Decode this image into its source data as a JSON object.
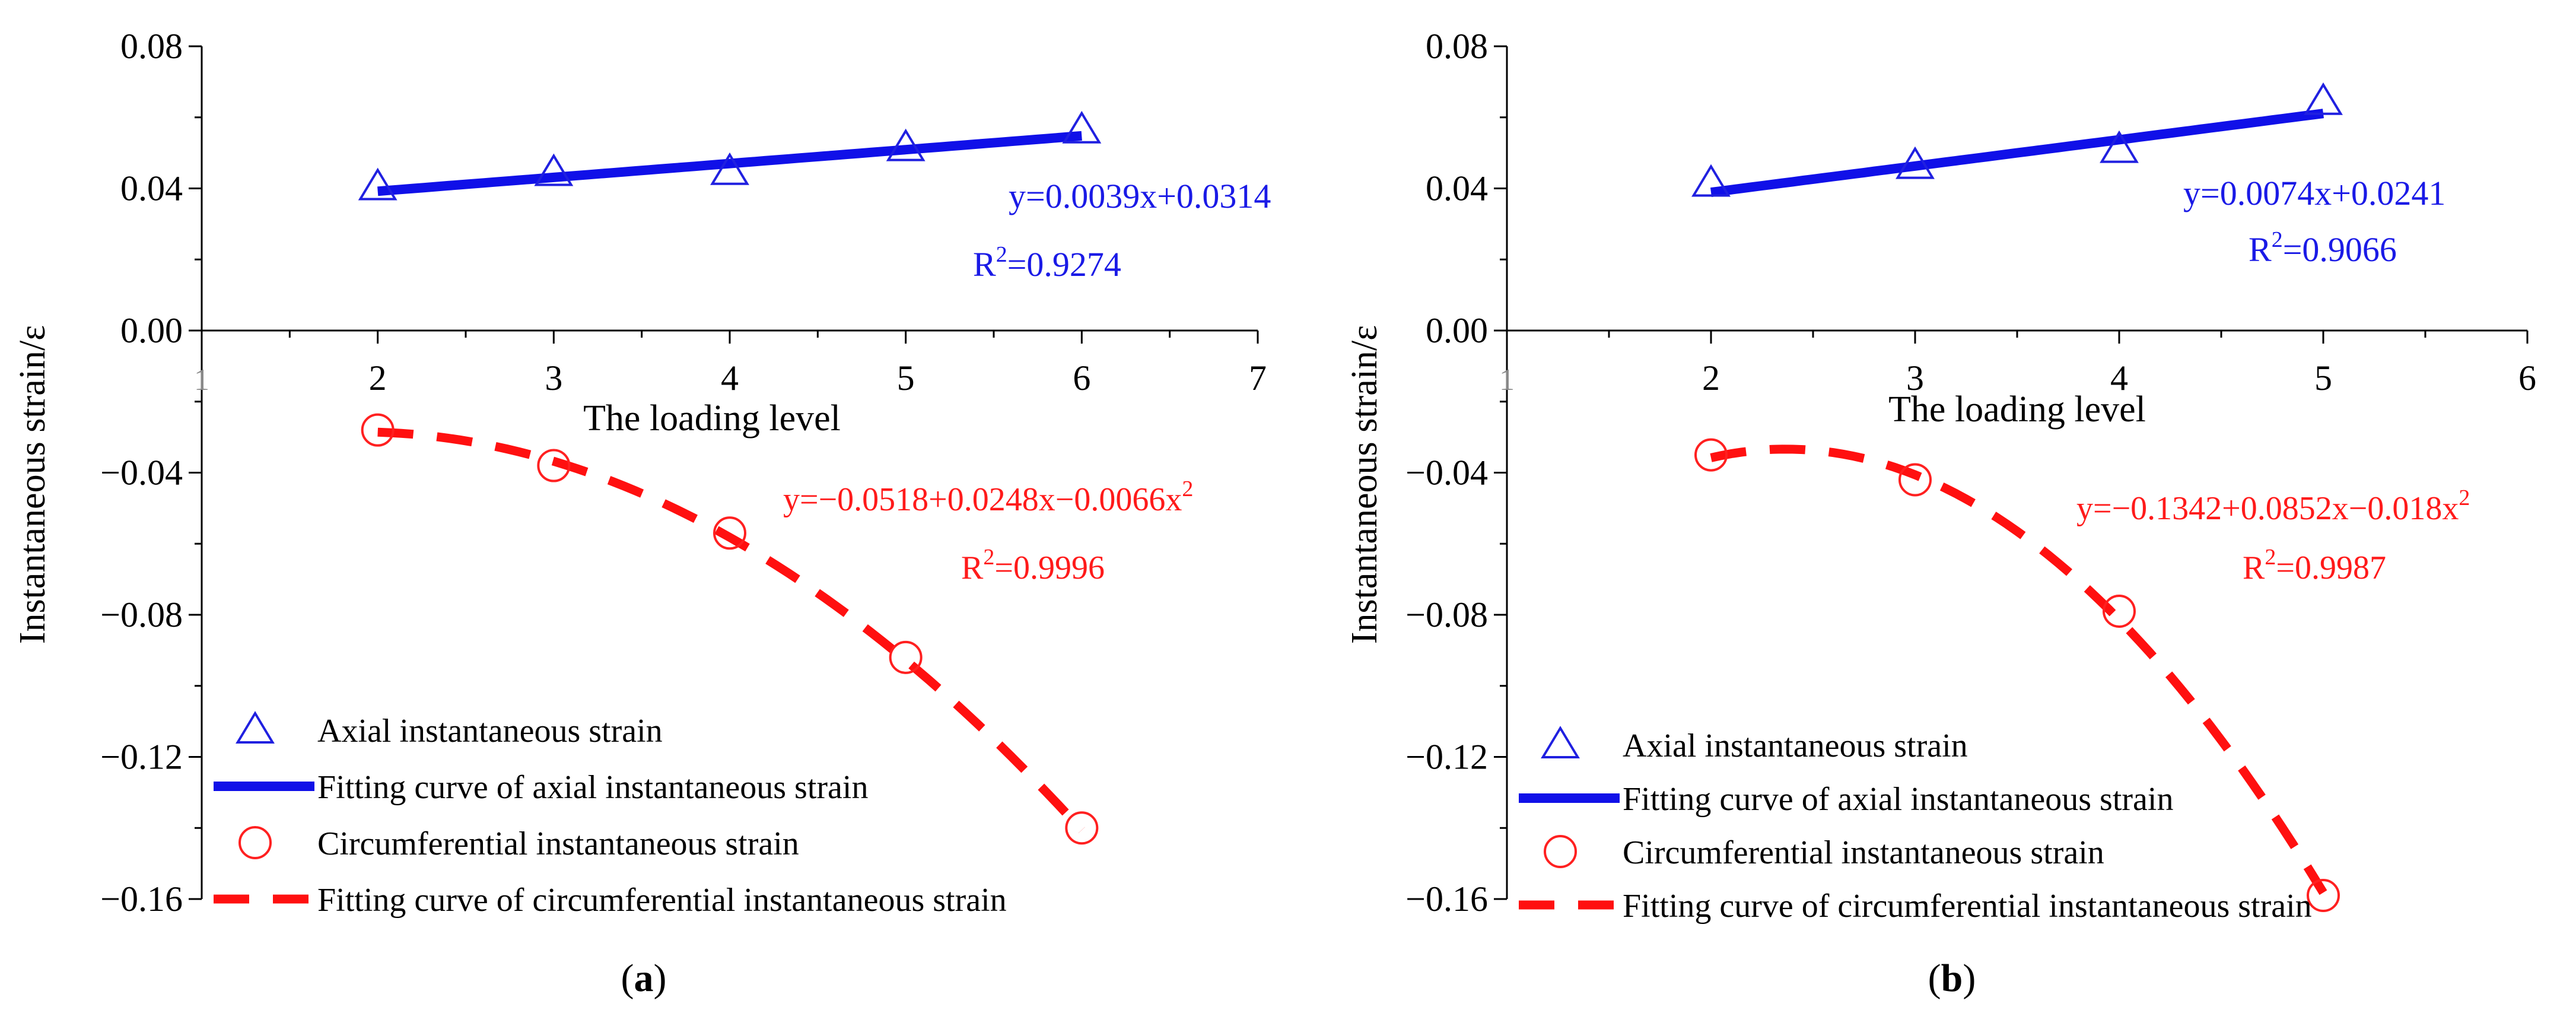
{
  "chart_data": [
    {
      "panel_label": "a",
      "type": "scatter",
      "xlabel": "The loading level",
      "ylabel": "Instantaneous strain/ε",
      "xlim": [
        1,
        7
      ],
      "ylim": [
        -0.16,
        0.08
      ],
      "xticks": [
        2,
        3,
        4,
        5,
        6,
        7
      ],
      "x_origin_label": "1",
      "yticks": [
        0.08,
        0.04,
        0.0,
        -0.04,
        -0.08,
        -0.12,
        -0.16
      ],
      "ytick_labels": [
        "0.08",
        "0.04",
        "0.00",
        "−0.04",
        "−0.08",
        "−0.12",
        "−0.16"
      ],
      "series": [
        {
          "name": "Axial instantaneous strain",
          "kind": "marker-triangle",
          "color": "#2020e0",
          "x": [
            2,
            3,
            4,
            5,
            6
          ],
          "y": [
            0.0405,
            0.0445,
            0.0448,
            0.0515,
            0.0565
          ]
        },
        {
          "name": "Fitting curve of axial instantaneous strain",
          "kind": "line-solid",
          "color": "#1010e8",
          "fit": "linear",
          "coef": [
            0.0314,
            0.0039
          ],
          "xrange": [
            2,
            6
          ]
        },
        {
          "name": "Circumferential instantaneous strain",
          "kind": "marker-circle",
          "color": "#ff2020",
          "x": [
            2,
            3,
            4,
            5,
            6
          ],
          "y": [
            -0.028,
            -0.038,
            -0.057,
            -0.092,
            -0.14
          ]
        },
        {
          "name": "Fitting curve of circumferential instantaneous strain",
          "kind": "line-dashed",
          "color": "#ff1010",
          "fit": "quadratic",
          "coef": [
            -0.0518,
            0.0248,
            -0.0066
          ],
          "xrange": [
            2,
            6
          ]
        }
      ],
      "annotations": {
        "axial_eq": "y=0.0039x+0.0314",
        "axial_r2_prefix": "R",
        "axial_r2_sup": "2",
        "axial_r2_value": "=0.9274",
        "circ_eq_main": "y=−0.0518+0.0248x−0.0066x",
        "circ_eq_sup": "2",
        "circ_r2_prefix": "R",
        "circ_r2_sup": "2",
        "circ_r2_value": "=0.9996"
      },
      "legend_position": "bottom-left"
    },
    {
      "panel_label": "b",
      "type": "scatter",
      "xlabel": "The loading level",
      "ylabel": "Instantaneous strain/ε",
      "xlim": [
        1,
        6
      ],
      "ylim": [
        -0.16,
        0.08
      ],
      "xticks": [
        2,
        3,
        4,
        5,
        6
      ],
      "x_origin_label": "1",
      "yticks": [
        0.08,
        0.04,
        0.0,
        -0.04,
        -0.08,
        -0.12,
        -0.16
      ],
      "ytick_labels": [
        "0.08",
        "0.04",
        "0.00",
        "−0.04",
        "−0.08",
        "−0.12",
        "−0.16"
      ],
      "series": [
        {
          "name": "Axial instantaneous strain",
          "kind": "marker-triangle",
          "color": "#2020e0",
          "x": [
            2,
            3,
            4,
            5
          ],
          "y": [
            0.0415,
            0.0465,
            0.051,
            0.0645
          ]
        },
        {
          "name": "Fitting curve of axial instantaneous strain",
          "kind": "line-solid",
          "color": "#1010e8",
          "fit": "linear",
          "coef": [
            0.0241,
            0.0074
          ],
          "xrange": [
            2,
            5
          ]
        },
        {
          "name": "Circumferential instantaneous strain",
          "kind": "marker-circle",
          "color": "#ff2020",
          "x": [
            2,
            3,
            4,
            5
          ],
          "y": [
            -0.035,
            -0.042,
            -0.079,
            -0.159
          ]
        },
        {
          "name": "Fitting curve of circumferential instantaneous strain",
          "kind": "line-dashed",
          "color": "#ff1010",
          "fit": "quadratic",
          "coef": [
            -0.1342,
            0.0852,
            -0.018
          ],
          "xrange": [
            2,
            5
          ]
        }
      ],
      "annotations": {
        "axial_eq": "y=0.0074x+0.0241",
        "axial_r2_prefix": "R",
        "axial_r2_sup": "2",
        "axial_r2_value": "=0.9066",
        "circ_eq_main": "y=−0.1342+0.0852x−0.018x",
        "circ_eq_sup": "2",
        "circ_r2_prefix": "R",
        "circ_r2_sup": "2",
        "circ_r2_value": "=0.9987"
      },
      "legend_position": "bottom-left"
    }
  ],
  "captions": {
    "a_open": "(",
    "a_letter": "a",
    "a_close": ")",
    "b_open": "(",
    "b_letter": "b",
    "b_close": ")"
  }
}
